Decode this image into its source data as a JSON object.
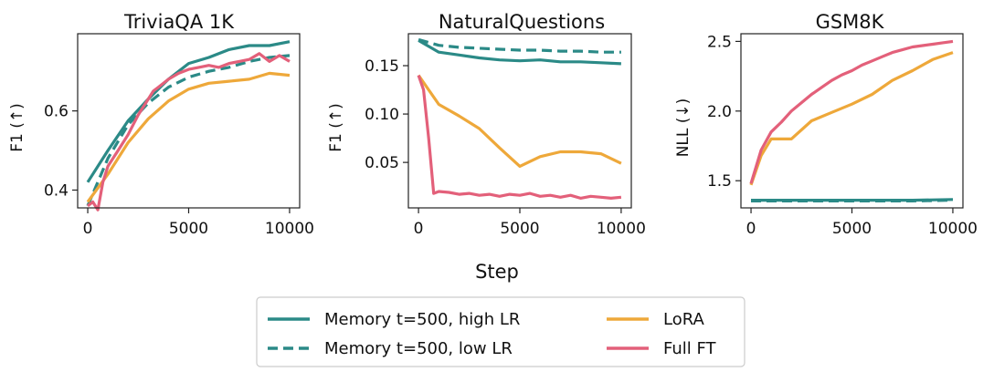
{
  "shared_xlabel": "Step",
  "colors": {
    "memory_high": "#2b8a87",
    "memory_low": "#2b8a87",
    "lora": "#eea83a",
    "full_ft": "#e3607a"
  },
  "legend": [
    {
      "key": "memory_high",
      "label": "Memory t=500, high LR",
      "dash": false
    },
    {
      "key": "memory_low",
      "label": "Memory t=500, low LR",
      "dash": true
    },
    {
      "key": "lora",
      "label": "LoRA",
      "dash": false
    },
    {
      "key": "full_ft",
      "label": "Full FT",
      "dash": false
    }
  ],
  "chart_data": [
    {
      "type": "line",
      "title": "TriviaQA 1K",
      "ylabel": "F1 (↑)",
      "xlim": [
        -500,
        10500
      ],
      "ylim": [
        0.355,
        0.795
      ],
      "xticks": [
        0,
        5000,
        10000
      ],
      "xtick_labels": [
        "0",
        "5000",
        "10000"
      ],
      "yticks": [
        0.4,
        0.6
      ],
      "ytick_labels": [
        "0.4",
        "0.6"
      ],
      "series": [
        {
          "key": "memory_high",
          "name": "Memory t=500, high LR",
          "x": [
            0,
            1000,
            2000,
            3000,
            4000,
            5000,
            6000,
            7000,
            8000,
            9000,
            10000
          ],
          "y": [
            0.42,
            0.5,
            0.575,
            0.63,
            0.68,
            0.72,
            0.735,
            0.755,
            0.765,
            0.765,
            0.775
          ]
        },
        {
          "key": "memory_low",
          "name": "Memory t=500, low LR",
          "x": [
            0,
            1000,
            2000,
            3000,
            4000,
            5000,
            6000,
            7000,
            8000,
            9000,
            10000
          ],
          "y": [
            0.36,
            0.48,
            0.565,
            0.62,
            0.66,
            0.685,
            0.7,
            0.71,
            0.725,
            0.735,
            0.74
          ]
        },
        {
          "key": "lora",
          "name": "LoRA",
          "x": [
            0,
            1000,
            2000,
            3000,
            4000,
            5000,
            6000,
            7000,
            8000,
            9000,
            10000
          ],
          "y": [
            0.37,
            0.44,
            0.52,
            0.58,
            0.625,
            0.655,
            0.67,
            0.675,
            0.68,
            0.695,
            0.69
          ]
        },
        {
          "key": "full_ft",
          "name": "Full FT",
          "x": [
            0,
            250,
            500,
            750,
            1000,
            1500,
            2000,
            2500,
            3000,
            3250,
            3500,
            4000,
            4500,
            5000,
            5500,
            6000,
            6500,
            7000,
            7500,
            8000,
            8500,
            9000,
            9500,
            10000
          ],
          "y": [
            0.36,
            0.37,
            0.35,
            0.42,
            0.46,
            0.5,
            0.54,
            0.59,
            0.63,
            0.65,
            0.66,
            0.68,
            0.695,
            0.705,
            0.71,
            0.715,
            0.71,
            0.72,
            0.725,
            0.73,
            0.745,
            0.725,
            0.74,
            0.725
          ]
        }
      ]
    },
    {
      "type": "line",
      "title": "NaturalQuestions",
      "ylabel": "F1 (↑)",
      "xlim": [
        -500,
        10500
      ],
      "ylim": [
        0.003,
        0.183
      ],
      "xticks": [
        0,
        5000,
        10000
      ],
      "xtick_labels": [
        "0",
        "5000",
        "10000"
      ],
      "yticks": [
        0.05,
        0.1,
        0.15
      ],
      "ytick_labels": [
        "0.05",
        "0.10",
        "0.15"
      ],
      "series": [
        {
          "key": "memory_high",
          "name": "Memory t=500, high LR",
          "x": [
            0,
            1000,
            2000,
            3000,
            4000,
            5000,
            6000,
            7000,
            8000,
            9000,
            10000
          ],
          "y": [
            0.176,
            0.164,
            0.161,
            0.158,
            0.156,
            0.155,
            0.156,
            0.154,
            0.154,
            0.153,
            0.152
          ]
        },
        {
          "key": "memory_low",
          "name": "Memory t=500, low LR",
          "x": [
            0,
            1000,
            2000,
            3000,
            4000,
            5000,
            6000,
            7000,
            8000,
            9000,
            10000
          ],
          "y": [
            0.177,
            0.171,
            0.169,
            0.168,
            0.167,
            0.166,
            0.166,
            0.165,
            0.165,
            0.164,
            0.164
          ]
        },
        {
          "key": "lora",
          "name": "LoRA",
          "x": [
            0,
            1000,
            2000,
            3000,
            4000,
            5000,
            6000,
            7000,
            8000,
            9000,
            10000
          ],
          "y": [
            0.14,
            0.11,
            0.098,
            0.085,
            0.065,
            0.046,
            0.056,
            0.061,
            0.061,
            0.059,
            0.049
          ]
        },
        {
          "key": "full_ft",
          "name": "Full FT",
          "x": [
            0,
            250,
            500,
            750,
            1000,
            1500,
            2000,
            2500,
            3000,
            3500,
            4000,
            4500,
            5000,
            5500,
            6000,
            6500,
            7000,
            7500,
            8000,
            8500,
            9000,
            9500,
            10000
          ],
          "y": [
            0.14,
            0.125,
            0.075,
            0.018,
            0.02,
            0.019,
            0.017,
            0.018,
            0.016,
            0.017,
            0.015,
            0.017,
            0.016,
            0.018,
            0.015,
            0.016,
            0.014,
            0.016,
            0.013,
            0.015,
            0.014,
            0.013,
            0.014
          ]
        }
      ]
    },
    {
      "type": "line",
      "title": "GSM8K",
      "ylabel": "NLL (↓)",
      "xlim": [
        -500,
        10500
      ],
      "ylim": [
        1.305,
        2.555
      ],
      "xticks": [
        0,
        5000,
        10000
      ],
      "xtick_labels": [
        "0",
        "5000",
        "10000"
      ],
      "yticks": [
        1.5,
        2.0,
        2.5
      ],
      "ytick_labels": [
        "1.5",
        "2.0",
        "2.5"
      ],
      "series": [
        {
          "key": "memory_high",
          "name": "Memory t=500, high LR",
          "x": [
            0,
            2000,
            4000,
            6000,
            8000,
            10000
          ],
          "y": [
            1.36,
            1.36,
            1.36,
            1.36,
            1.36,
            1.365
          ]
        },
        {
          "key": "memory_low",
          "name": "Memory t=500, low LR",
          "x": [
            0,
            2000,
            4000,
            6000,
            8000,
            10000
          ],
          "y": [
            1.355,
            1.355,
            1.355,
            1.355,
            1.355,
            1.36
          ]
        },
        {
          "key": "lora",
          "name": "LoRA",
          "x": [
            0,
            500,
            1000,
            1500,
            2000,
            3000,
            4000,
            5000,
            6000,
            7000,
            8000,
            9000,
            10000
          ],
          "y": [
            1.47,
            1.68,
            1.8,
            1.8,
            1.8,
            1.93,
            1.99,
            2.05,
            2.12,
            2.22,
            2.29,
            2.37,
            2.42
          ]
        },
        {
          "key": "full_ft",
          "name": "Full FT",
          "x": [
            0,
            500,
            1000,
            1500,
            2000,
            2500,
            3000,
            3500,
            4000,
            4500,
            5000,
            5500,
            6000,
            6500,
            7000,
            7500,
            8000,
            8500,
            9000,
            9500,
            10000
          ],
          "y": [
            1.48,
            1.72,
            1.85,
            1.92,
            2.0,
            2.06,
            2.12,
            2.17,
            2.22,
            2.26,
            2.29,
            2.33,
            2.36,
            2.39,
            2.42,
            2.44,
            2.46,
            2.47,
            2.48,
            2.49,
            2.5
          ]
        }
      ]
    }
  ]
}
